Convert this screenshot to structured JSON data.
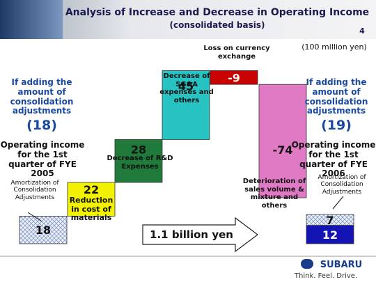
{
  "chart_data": {
    "type": "waterfall",
    "title": "Analysis of Increase and Decrease in Operating Income",
    "subtitle": "(consolidated basis)",
    "page_number": "4",
    "unit": "(100 million yen)",
    "categories": [
      "Amortization of Consolidation Adjustments",
      "Reduction in cost of materials",
      "Decrease of R&D Expenses",
      "Decrease of SG&A expenses and others",
      "Loss on currency exchange",
      "Deterioration of sales volume & mixture and others"
    ],
    "values": [
      18,
      22,
      28,
      45,
      -9,
      -74
    ],
    "colors": [
      "hatch",
      "#f2f200",
      "#1f7a3c",
      "#27c3c3",
      "#c80000",
      "#e07ac4"
    ],
    "end": {
      "categories": [
        null,
        "Amortization of Consolidation Adjustments"
      ],
      "values": [
        12,
        7
      ],
      "colors": [
        "#1414b4",
        "hatch"
      ]
    },
    "left": {
      "note": "If adding the amount of consolidation adjustments",
      "total": 18,
      "total_label": "(18)",
      "label": "Operating income for the 1st quarter of FYE 2005"
    },
    "right": {
      "note": "If adding the amount of consolidation adjustments",
      "total": 19,
      "total_label": "(19)",
      "label": "Operating income for the 1st quarter of FYE 2006"
    },
    "arrow_label": "1.1 billion yen",
    "brand": "SUBARU",
    "tagline": "Think. Feel. Drive."
  }
}
